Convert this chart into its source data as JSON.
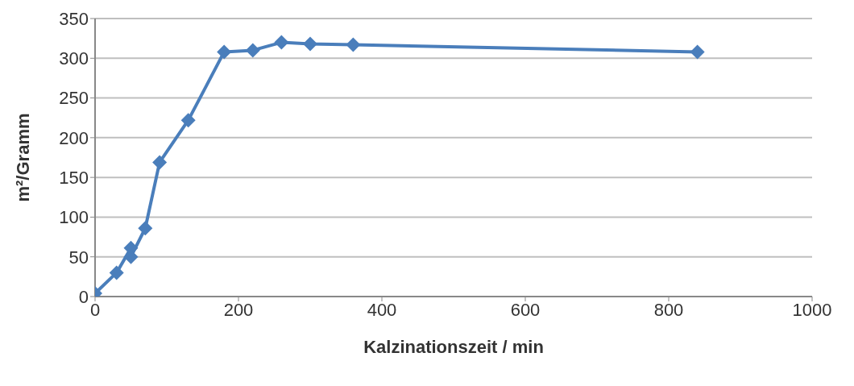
{
  "chart_data": {
    "type": "line",
    "xlabel": "Kalzinationszeit / min",
    "ylabel": "m²/Gramm",
    "x": [
      0,
      30,
      50,
      50,
      70,
      90,
      130,
      180,
      220,
      260,
      300,
      360,
      840
    ],
    "series": [
      {
        "color": "#4a7ebb",
        "values": [
          4,
          30,
          61,
          50,
          86,
          169,
          222,
          308,
          310,
          320,
          318,
          317,
          308
        ]
      }
    ],
    "xlim": [
      0,
      1000
    ],
    "xticks": [
      0,
      200,
      400,
      600,
      800,
      1000
    ],
    "ylim": [
      0,
      350
    ],
    "yticks": [
      0,
      50,
      100,
      150,
      200,
      250,
      300,
      350
    ],
    "grid": "y",
    "marker": "diamond",
    "line_style": "solid"
  }
}
